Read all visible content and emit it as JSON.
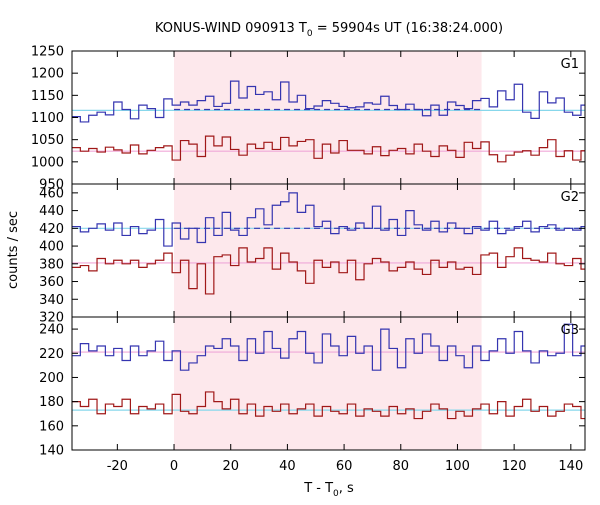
{
  "chart_data": {
    "type": "line",
    "title_main": "KONUS-WIND 090913 T",
    "title_sub": "0",
    "title_rest": " = 59904s UT (16:38:24.000)",
    "xlabel_main": "T - T",
    "xlabel_sub": "0",
    "xlabel_rest": ", s",
    "ylabel": "counts / sec",
    "xlim": [
      -36,
      145
    ],
    "x_ticks": [
      -20,
      0,
      20,
      40,
      60,
      80,
      100,
      120,
      140
    ],
    "x_tick_labels": [
      "-20",
      "0",
      "20",
      "40",
      "60",
      "80",
      "100",
      "120",
      "140"
    ],
    "highlight_interval": [
      0,
      108.5
    ],
    "bin_width": 2.944,
    "colors": {
      "blue_series": "#3535b0",
      "red_series": "#a01818",
      "blue_background": "#87d7eb",
      "red_background": "#f0a8d8",
      "dashed_fit": "#3535b0",
      "highlight": "#fde8ec"
    },
    "panels": [
      {
        "label": "G1",
        "ylim": [
          950,
          1250
        ],
        "y_ticks": [
          950,
          1000,
          1050,
          1100,
          1150,
          1200,
          1250
        ],
        "y_tick_labels": [
          "950",
          "1000",
          "1050",
          "1100",
          "1150",
          "1200",
          "1250"
        ],
        "series": [
          {
            "name": "G1 count rate (upper)",
            "color": "blue_series",
            "start": -36,
            "values": [
              1102,
              1090,
              1105,
              1112,
              1106,
              1135,
              1118,
              1097,
              1128,
              1120,
              1100,
              1142,
              1128,
              1135,
              1128,
              1138,
              1148,
              1125,
              1132,
              1182,
              1144,
              1170,
              1152,
              1158,
              1140,
              1180,
              1135,
              1150,
              1120,
              1126,
              1138,
              1132,
              1125,
              1122,
              1124,
              1133,
              1130,
              1148,
              1127,
              1118,
              1130,
              1118,
              1104,
              1128,
              1105,
              1135,
              1127,
              1120,
              1138,
              1143,
              1124,
              1160,
              1140,
              1175,
              1112,
              1098,
              1158,
              1133,
              1144,
              1112,
              1105,
              1128
            ]
          },
          {
            "name": "G1 count rate (lower)",
            "color": "red_series",
            "start": -36,
            "values": [
              1032,
              1024,
              1030,
              1022,
              1033,
              1027,
              1020,
              1038,
              1018,
              1026,
              1032,
              1036,
              1004,
              1048,
              1040,
              1012,
              1058,
              1036,
              1056,
              1028,
              1015,
              1040,
              1030,
              1044,
              1028,
              1055,
              1036,
              1046,
              1050,
              1008,
              1040,
              1020,
              1048,
              1026,
              1026,
              1018,
              1034,
              1014,
              1026,
              1030,
              1018,
              1040,
              1024,
              1012,
              1036,
              1026,
              1010,
              1044,
              1030,
              1045,
              1016,
              1000,
              1015,
              1022,
              1025,
              1015,
              1032,
              1050,
              1012,
              1025,
              1004,
              1025
            ]
          }
        ],
        "backgrounds": [
          {
            "name": "G1 upper background",
            "color": "blue_background",
            "value": 1116
          },
          {
            "name": "G1 lower background",
            "color": "red_background",
            "value": 1024
          }
        ],
        "dashed_fits": [
          {
            "name": "G1 dashed fit",
            "color": "dashed_fit",
            "x": [
              0,
              108.5
            ],
            "y": [
              1118,
              1118
            ]
          }
        ]
      },
      {
        "label": "G2",
        "ylim": [
          320,
          470
        ],
        "y_ticks": [
          320,
          340,
          360,
          380,
          400,
          420,
          440,
          460
        ],
        "y_tick_labels": [
          "320",
          "340",
          "360",
          "380",
          "400",
          "420",
          "440",
          "460"
        ],
        "series": [
          {
            "name": "G2 count rate (upper)",
            "color": "blue_series",
            "start": -36,
            "values": [
              422,
              416,
              420,
              425,
              418,
              426,
              412,
              422,
              414,
              418,
              430,
              400,
              426,
              408,
              420,
              404,
              432,
              412,
              438,
              418,
              412,
              432,
              442,
              424,
              446,
              450,
              460,
              438,
              446,
              422,
              428,
              414,
              422,
              418,
              426,
              420,
              445,
              418,
              430,
              412,
              440,
              424,
              418,
              428,
              416,
              426,
              420,
              414,
              422,
              418,
              428,
              414,
              418,
              422,
              428,
              416,
              422,
              424,
              418,
              420,
              418,
              422
            ]
          },
          {
            "name": "G2 count rate (lower)",
            "color": "red_series",
            "start": -36,
            "values": [
              376,
              378,
              372,
              386,
              380,
              384,
              380,
              384,
              376,
              380,
              384,
              392,
              370,
              384,
              352,
              380,
              346,
              388,
              390,
              378,
              398,
              382,
              386,
              398,
              374,
              392,
              382,
              372,
              358,
              384,
              376,
              382,
              370,
              384,
              362,
              380,
              386,
              382,
              372,
              376,
              382,
              374,
              368,
              384,
              376,
              382,
              374,
              376,
              368,
              390,
              392,
              376,
              388,
              398,
              386,
              384,
              382,
              392,
              380,
              378,
              386,
              374
            ]
          }
        ],
        "backgrounds": [
          {
            "name": "G2 upper background",
            "color": "blue_background",
            "value": 420
          },
          {
            "name": "G2 lower background",
            "color": "red_background",
            "value": 381
          }
        ],
        "dashed_fits": [
          {
            "name": "G2 dashed fit",
            "color": "dashed_fit",
            "x": [
              0,
              145
            ],
            "y": [
              420,
              420
            ]
          }
        ]
      },
      {
        "label": "G3",
        "ylim": [
          140,
          250
        ],
        "y_ticks": [
          140,
          160,
          180,
          200,
          220,
          240
        ],
        "y_tick_labels": [
          "140",
          "160",
          "180",
          "200",
          "220",
          "240"
        ],
        "series": [
          {
            "name": "G3 count rate (upper)",
            "color": "blue_series",
            "start": -36,
            "values": [
              218,
              228,
              222,
              226,
              218,
              224,
              214,
              226,
              218,
              222,
              230,
              214,
              222,
              206,
              212,
              218,
              226,
              224,
              232,
              226,
              214,
              232,
              220,
              238,
              224,
              216,
              232,
              238,
              220,
              212,
              236,
              226,
              218,
              234,
              220,
              226,
              206,
              240,
              224,
              208,
              232,
              220,
              236,
              226,
              214,
              226,
              218,
              208,
              226,
              214,
              222,
              232,
              220,
              238,
              222,
              212,
              222,
              218,
              220,
              244,
              218,
              226
            ]
          },
          {
            "name": "G3 count rate (lower)",
            "color": "red_series",
            "start": -36,
            "values": [
              180,
              176,
              182,
              170,
              178,
              176,
              182,
              170,
              176,
              174,
              178,
              170,
              186,
              172,
              170,
              176,
              188,
              180,
              174,
              182,
              170,
              178,
              168,
              176,
              172,
              178,
              170,
              174,
              178,
              168,
              176,
              172,
              170,
              178,
              168,
              174,
              172,
              168,
              176,
              170,
              174,
              166,
              172,
              178,
              174,
              166,
              172,
              168,
              174,
              178,
              170,
              180,
              168,
              176,
              182,
              172,
              176,
              168,
              172,
              178,
              176,
              166
            ]
          }
        ],
        "backgrounds": [
          {
            "name": "G3 upper background",
            "color": "red_background",
            "value": 221
          },
          {
            "name": "G3 lower background",
            "color": "blue_background",
            "value": 173
          }
        ],
        "dashed_fits": []
      }
    ]
  }
}
